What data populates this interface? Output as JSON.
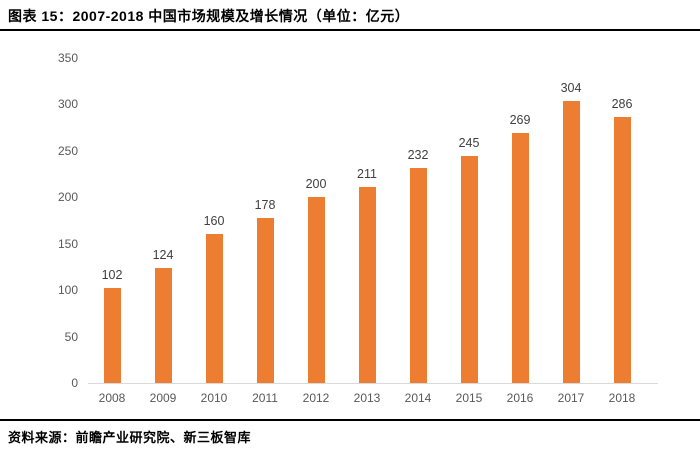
{
  "header": {
    "title": "图表 15：2007-2018 中国市场规模及增长情况（单位：亿元）"
  },
  "footer": {
    "source": "资料来源：前瞻产业研究院、新三板智库"
  },
  "chart_data": {
    "type": "bar",
    "title": "图表 15：2007-2018 中国市场规模及增长情况（单位：亿元）",
    "categories": [
      "2008",
      "2009",
      "2010",
      "2011",
      "2012",
      "2013",
      "2014",
      "2015",
      "2016",
      "2017",
      "2018"
    ],
    "values": [
      102,
      124,
      160,
      178,
      200,
      211,
      232,
      245,
      269,
      304,
      286
    ],
    "xlabel": "",
    "ylabel": "",
    "ylim": [
      0,
      350
    ],
    "ytick_step": 50,
    "yticks": [
      0,
      50,
      100,
      150,
      200,
      250,
      300,
      350
    ],
    "grid": false,
    "legend": "none",
    "data_labels": true,
    "bar_color": "#ED7D31",
    "value_label_color": "#404040",
    "axis_tick_color": "#595959",
    "baseline_color": "#D9D9D9",
    "source_text": "资料来源：前瞻产业研究院、新三板智库"
  }
}
